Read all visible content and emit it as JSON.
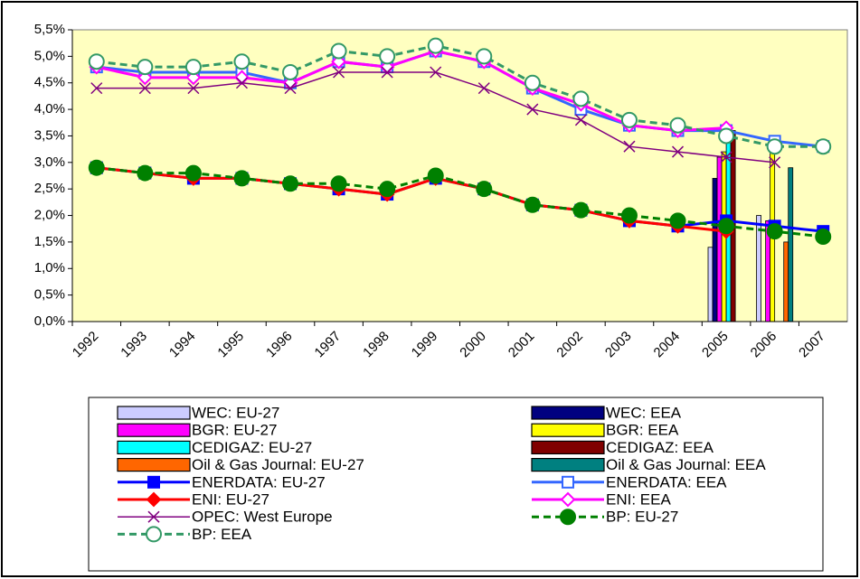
{
  "chart_data": {
    "type": "combo",
    "categories": [
      "1992",
      "1993",
      "1994",
      "1995",
      "1996",
      "1997",
      "1998",
      "1999",
      "2000",
      "2001",
      "2002",
      "2003",
      "2004",
      "2005",
      "2006",
      "2007"
    ],
    "ylim": [
      0,
      5.5
    ],
    "yticks": [
      {
        "value": 0,
        "label": "0,0%"
      },
      {
        "value": 0.5,
        "label": "0,5%"
      },
      {
        "value": 1,
        "label": "1,0%"
      },
      {
        "value": 1.5,
        "label": "1,5%"
      },
      {
        "value": 2,
        "label": "2,0%"
      },
      {
        "value": 2.5,
        "label": "2,5%"
      },
      {
        "value": 3,
        "label": "3,0%"
      },
      {
        "value": 3.5,
        "label": "3,5%"
      },
      {
        "value": 4,
        "label": "4,0%"
      },
      {
        "value": 4.5,
        "label": "4,5%"
      },
      {
        "value": 5,
        "label": "5,0%"
      },
      {
        "value": 5.5,
        "label": "5,5%"
      }
    ],
    "grid": false,
    "plot_background": "#ffffc0",
    "series": [
      {
        "name": "WEC: EU-27",
        "type": "bar",
        "color": "#ccccff",
        "values": [
          null,
          null,
          null,
          null,
          null,
          null,
          null,
          null,
          null,
          null,
          null,
          null,
          null,
          1.4,
          2.0,
          null
        ]
      },
      {
        "name": "WEC: EEA",
        "type": "bar",
        "color": "#000080",
        "values": [
          null,
          null,
          null,
          null,
          null,
          null,
          null,
          null,
          null,
          null,
          null,
          null,
          null,
          2.7,
          null,
          null
        ]
      },
      {
        "name": "BGR: EU-27",
        "type": "bar",
        "color": "#ff00ff",
        "values": [
          null,
          null,
          null,
          null,
          null,
          null,
          null,
          null,
          null,
          null,
          null,
          null,
          null,
          3.1,
          1.9,
          null
        ]
      },
      {
        "name": "BGR: EEA",
        "type": "bar",
        "color": "#ffff00",
        "values": [
          null,
          null,
          null,
          null,
          null,
          null,
          null,
          null,
          null,
          null,
          null,
          null,
          null,
          3.2,
          3.2,
          null
        ]
      },
      {
        "name": "CEDIGAZ: EU-27",
        "type": "bar",
        "color": "#00ffff",
        "values": [
          null,
          null,
          null,
          null,
          null,
          null,
          null,
          null,
          null,
          null,
          null,
          null,
          null,
          3.5,
          null,
          null
        ]
      },
      {
        "name": "CEDIGAZ: EEA",
        "type": "bar",
        "color": "#800000",
        "values": [
          null,
          null,
          null,
          null,
          null,
          null,
          null,
          null,
          null,
          null,
          null,
          null,
          null,
          3.6,
          null,
          null
        ]
      },
      {
        "name": "Oil & Gas Journal: EU-27",
        "type": "bar",
        "color": "#ff6600",
        "values": [
          null,
          null,
          null,
          null,
          null,
          null,
          null,
          null,
          null,
          null,
          null,
          null,
          null,
          null,
          1.5,
          null
        ]
      },
      {
        "name": "Oil & Gas Journal: EEA",
        "type": "bar",
        "color": "#008080",
        "values": [
          null,
          null,
          null,
          null,
          null,
          null,
          null,
          null,
          null,
          null,
          null,
          null,
          null,
          null,
          2.9,
          null
        ]
      },
      {
        "name": "ENERDATA: EU-27",
        "type": "line",
        "color": "#0000ff",
        "marker": "square",
        "filled": true,
        "dashed": false,
        "values": [
          2.9,
          2.8,
          2.7,
          2.7,
          2.6,
          2.5,
          2.4,
          2.7,
          2.5,
          2.2,
          2.1,
          1.9,
          1.8,
          1.9,
          1.8,
          1.7
        ]
      },
      {
        "name": "ENERDATA: EEA",
        "type": "line",
        "color": "#3366ff",
        "marker": "square",
        "filled": false,
        "dashed": false,
        "values": [
          4.8,
          4.7,
          4.7,
          4.7,
          4.5,
          4.9,
          4.8,
          5.1,
          4.9,
          4.4,
          4.0,
          3.7,
          3.6,
          3.6,
          3.4,
          3.3
        ]
      },
      {
        "name": "ENI: EU-27",
        "type": "line",
        "color": "#ff0000",
        "marker": "diamond",
        "filled": true,
        "dashed": false,
        "values": [
          2.9,
          2.8,
          2.7,
          2.7,
          2.6,
          2.5,
          2.4,
          2.7,
          2.5,
          2.2,
          2.1,
          1.9,
          1.8,
          1.7,
          null,
          null
        ]
      },
      {
        "name": "ENI: EEA",
        "type": "line",
        "color": "#ff00ff",
        "marker": "diamond",
        "filled": false,
        "dashed": false,
        "values": [
          4.8,
          4.6,
          4.6,
          4.6,
          4.5,
          4.9,
          4.8,
          5.1,
          4.9,
          4.4,
          4.1,
          3.7,
          3.6,
          3.65,
          null,
          null
        ]
      },
      {
        "name": "OPEC: West Europe",
        "type": "line",
        "color": "#800080",
        "marker": "x",
        "filled": false,
        "dashed": false,
        "values": [
          4.4,
          4.4,
          4.4,
          4.5,
          4.4,
          4.7,
          4.7,
          4.7,
          4.4,
          4.0,
          3.8,
          3.3,
          3.2,
          3.1,
          3.0,
          null
        ]
      },
      {
        "name": "BP: EU-27",
        "type": "line",
        "color": "#008000",
        "marker": "circle",
        "filled": true,
        "dashed": true,
        "values": [
          2.9,
          2.8,
          2.8,
          2.7,
          2.6,
          2.6,
          2.5,
          2.75,
          2.5,
          2.2,
          2.1,
          2.0,
          1.9,
          1.8,
          1.7,
          1.6
        ]
      },
      {
        "name": "BP: EEA",
        "type": "line",
        "color": "#339966",
        "marker": "circle",
        "filled": false,
        "dashed": true,
        "values": [
          4.9,
          4.8,
          4.8,
          4.9,
          4.7,
          5.1,
          5.0,
          5.2,
          5.0,
          4.5,
          4.2,
          3.8,
          3.7,
          3.5,
          3.3,
          3.3
        ]
      }
    ]
  }
}
